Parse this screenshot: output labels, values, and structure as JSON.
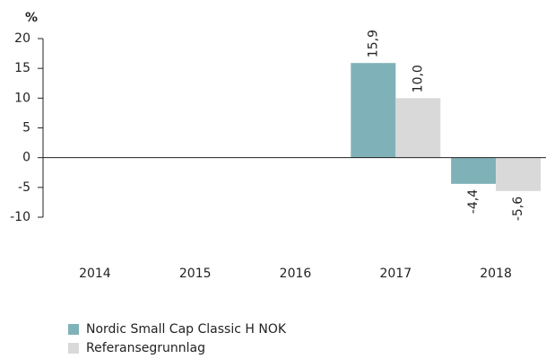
{
  "chart_data": {
    "type": "bar",
    "y_label": "%",
    "categories": [
      "2014",
      "2015",
      "2016",
      "2017",
      "2018"
    ],
    "series": [
      {
        "name": "Nordic Small Cap Classic H NOK",
        "color": "#7fb2b8",
        "values": [
          null,
          null,
          null,
          15.9,
          -4.4
        ],
        "value_labels": [
          null,
          null,
          null,
          "15,9",
          "-4,4"
        ]
      },
      {
        "name": "Referansegrunnlag",
        "color": "#d9d9d9",
        "values": [
          null,
          null,
          null,
          10.0,
          -5.6
        ],
        "value_labels": [
          null,
          null,
          null,
          "10,0",
          "-5,6"
        ]
      }
    ],
    "ylim": [
      -10,
      20
    ],
    "yticks": [
      -10,
      -5,
      0,
      5,
      10,
      15,
      20
    ],
    "grid": false,
    "legend": "bottom-left"
  }
}
